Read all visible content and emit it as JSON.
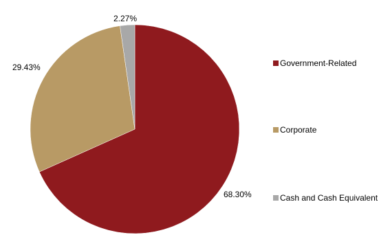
{
  "chart_data": {
    "type": "pie",
    "title": "",
    "slices": [
      {
        "label": "Government-Related",
        "value": 68.3,
        "value_label": "68.30%",
        "color": "#8f1a1e"
      },
      {
        "label": "Corporate",
        "value": 29.43,
        "value_label": "29.43%",
        "color": "#b89a65"
      },
      {
        "label": "Cash and Cash Equivalent",
        "value": 2.27,
        "value_label": "2.27%",
        "color": "#a8a8a8"
      }
    ],
    "start_angle": "12 o'clock",
    "direction": "clockwise",
    "legend_position": "right"
  }
}
